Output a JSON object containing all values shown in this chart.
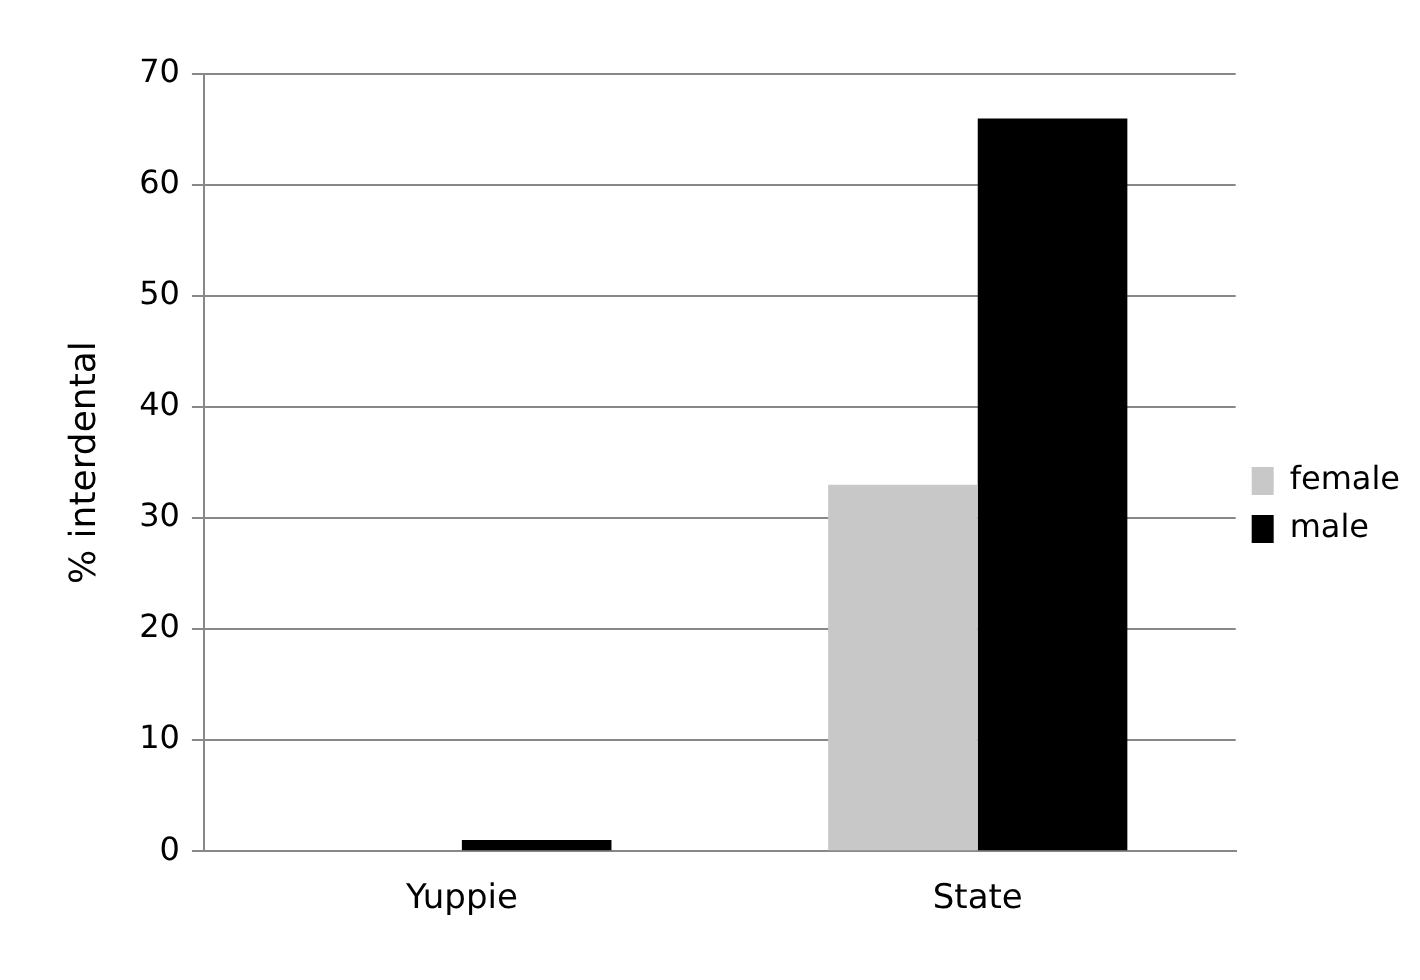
{
  "chart_data": {
    "type": "bar",
    "ylabel": "% interdental",
    "categories": [
      "Yuppie",
      "State"
    ],
    "series": [
      {
        "name": "female",
        "color": "#c8c8c8",
        "values": [
          0,
          33
        ]
      },
      {
        "name": "male",
        "color": "#000000",
        "values": [
          1,
          66
        ]
      }
    ],
    "ylim": [
      0,
      70
    ],
    "yticks": [
      0,
      10,
      20,
      30,
      40,
      50,
      60,
      70
    ],
    "grid": "y",
    "legend": "right"
  }
}
